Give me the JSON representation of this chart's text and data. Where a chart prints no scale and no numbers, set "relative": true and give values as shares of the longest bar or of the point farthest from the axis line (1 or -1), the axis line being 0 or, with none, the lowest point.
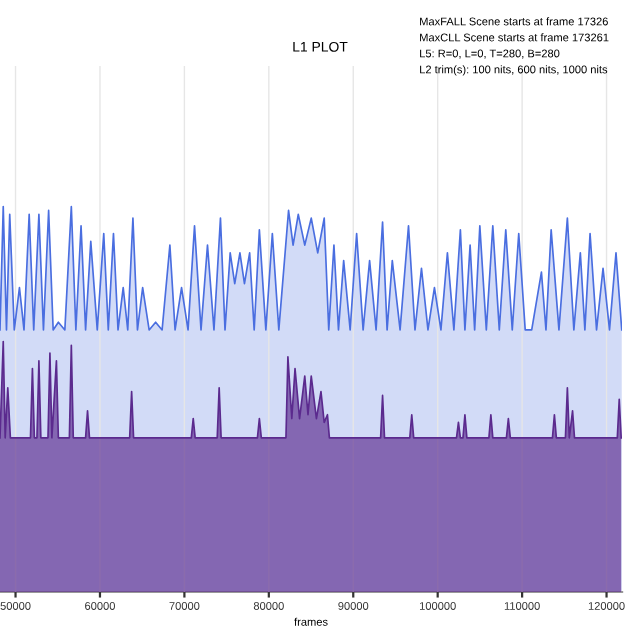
{
  "chart_data": {
    "type": "area",
    "title": "L1 PLOT",
    "xlabel": "frames",
    "relative": true,
    "grid": "x",
    "annotations": [
      "MaxFALL Scene starts at frame 17326",
      "MaxCLL Scene starts at frame 173261",
      "L5: R=0, L=0, T=280, B=280",
      "L2 trim(s): 100 nits, 600 nits, 1000 nits"
    ],
    "xlim": [
      48160,
      121840
    ],
    "xticks": [
      50000,
      60000,
      70000,
      80000,
      90000,
      100000,
      110000,
      120000
    ],
    "series": [
      {
        "color": "#4a6ee0",
        "x": [
          48160,
          48544,
          48928,
          49312,
          49850,
          50464,
          51002,
          51616,
          52154,
          52768,
          53306,
          53920,
          54458,
          55072,
          55840,
          56608,
          57146,
          57760,
          58298,
          58912,
          59680,
          60448,
          60986,
          61600,
          62138,
          62752,
          63290,
          63904,
          64442,
          65056,
          65824,
          66592,
          67360,
          68282,
          68896,
          69664,
          70432,
          71200,
          71968,
          72736,
          73504,
          74272,
          74810,
          75424,
          75962,
          76576,
          77114,
          77728,
          78266,
          78880,
          79648,
          80416,
          81184,
          82336,
          82874,
          83488,
          84256,
          85024,
          85792,
          86560,
          87098,
          87712,
          88250,
          88864,
          89632,
          90400,
          91168,
          91936,
          92704,
          93472,
          94010,
          94624,
          95546,
          96544,
          97312,
          98080,
          98848,
          99616,
          100384,
          101152,
          101920,
          102688,
          103226,
          103840,
          104378,
          104992,
          105760,
          106528,
          107296,
          108064,
          108832,
          109600,
          110368,
          111136,
          112288,
          112826,
          113440,
          114362,
          115360,
          116128,
          116896,
          117434,
          118048,
          118816,
          119584,
          120352,
          121120,
          121800
        ],
        "values": [
          0.68,
          1.0,
          0.68,
          0.98,
          0.68,
          0.79,
          0.68,
          0.98,
          0.68,
          0.98,
          0.68,
          0.99,
          0.68,
          0.7,
          0.68,
          1.0,
          0.68,
          0.95,
          0.68,
          0.91,
          0.68,
          0.93,
          0.68,
          0.93,
          0.68,
          0.79,
          0.68,
          0.97,
          0.68,
          0.79,
          0.68,
          0.7,
          0.68,
          0.9,
          0.68,
          0.79,
          0.68,
          0.95,
          0.68,
          0.9,
          0.68,
          0.97,
          0.68,
          0.88,
          0.8,
          0.88,
          0.8,
          0.88,
          0.68,
          0.94,
          0.68,
          0.93,
          0.68,
          0.99,
          0.9,
          0.98,
          0.9,
          0.97,
          0.88,
          0.97,
          0.68,
          0.9,
          0.68,
          0.86,
          0.68,
          0.93,
          0.68,
          0.86,
          0.68,
          0.96,
          0.68,
          0.86,
          0.68,
          0.95,
          0.68,
          0.84,
          0.68,
          0.79,
          0.68,
          0.88,
          0.68,
          0.94,
          0.68,
          0.9,
          0.68,
          0.95,
          0.68,
          0.95,
          0.68,
          0.94,
          0.68,
          0.93,
          0.68,
          0.68,
          0.83,
          0.68,
          0.94,
          0.68,
          0.97,
          0.68,
          0.88,
          0.68,
          0.93,
          0.68,
          0.84,
          0.68,
          0.88,
          0.68
        ]
      },
      {
        "color": "#5b2a8e",
        "x": [
          48160,
          48544,
          48774,
          49082,
          49389,
          51770,
          52000,
          52230,
          52538,
          52768,
          52998,
          53843,
          54074,
          54304,
          54842,
          55072,
          56378,
          56608,
          56838,
          58298,
          58528,
          58758,
          63520,
          63750,
          63981,
          70816,
          71046,
          71277,
          73888,
          74118,
          74349,
          78650,
          78880,
          79110,
          82029,
          82259,
          82720,
          83104,
          83642,
          84256,
          84640,
          85024,
          85638,
          86176,
          86560,
          86944,
          87174,
          93242,
          93472,
          93702,
          96698,
          96928,
          97158,
          102227,
          102458,
          102688,
          102995,
          103226,
          103456,
          106067,
          106298,
          106528,
          108141,
          108371,
          108602,
          113594,
          113824,
          114054,
          115130,
          115360,
          115590,
          115974,
          116205,
          121274,
          121504,
          121734
        ],
        "values": [
          0.4,
          0.65,
          0.4,
          0.53,
          0.4,
          0.4,
          0.58,
          0.4,
          0.4,
          0.6,
          0.4,
          0.4,
          0.62,
          0.4,
          0.6,
          0.4,
          0.4,
          0.64,
          0.4,
          0.4,
          0.47,
          0.4,
          0.4,
          0.52,
          0.4,
          0.4,
          0.45,
          0.4,
          0.4,
          0.53,
          0.4,
          0.4,
          0.45,
          0.4,
          0.4,
          0.61,
          0.45,
          0.58,
          0.45,
          0.56,
          0.46,
          0.56,
          0.45,
          0.52,
          0.44,
          0.46,
          0.4,
          0.4,
          0.51,
          0.4,
          0.4,
          0.46,
          0.4,
          0.4,
          0.44,
          0.4,
          0.4,
          0.46,
          0.4,
          0.4,
          0.46,
          0.4,
          0.4,
          0.45,
          0.4,
          0.4,
          0.46,
          0.4,
          0.4,
          0.53,
          0.4,
          0.47,
          0.4,
          0.4,
          0.5,
          0.4
        ]
      }
    ]
  }
}
